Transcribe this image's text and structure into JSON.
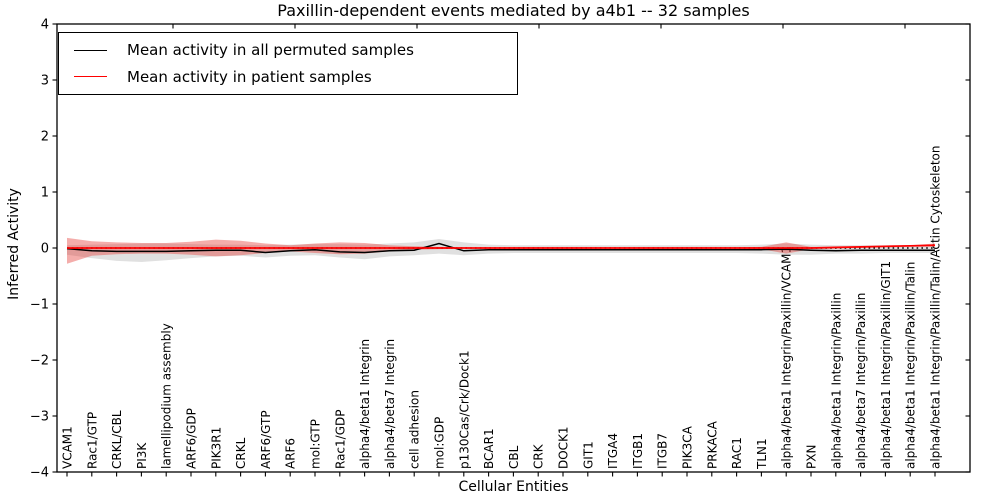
{
  "chart_data": {
    "type": "line",
    "title": "Paxillin-dependent events mediated by a4b1 -- 32 samples",
    "xlabel": "Cellular Entities",
    "ylabel": "Inferred Activity",
    "ylim": [
      -4,
      4
    ],
    "yticks": [
      -4,
      -3,
      -2,
      -1,
      0,
      1,
      2,
      3,
      4
    ],
    "grid": false,
    "legend_position": "upper left",
    "zero_reference_line": {
      "style": "dotted",
      "color": "#000000",
      "y": 0
    },
    "categories": [
      "VCAM1",
      "Rac1/GTP",
      "CRKL/CBL",
      "PI3K",
      "lamellipodium assembly",
      "ARF6/GDP",
      "PIK3R1",
      "CRKL",
      "ARF6/GTP",
      "ARF6",
      "mol:GTP",
      "Rac1/GDP",
      "alpha4/beta1 Integrin",
      "alpha4/beta7 Integrin",
      "cell adhesion",
      "mol:GDP",
      "p130Cas/Crk/Dock1",
      "BCAR1",
      "CBL",
      "CRK",
      "DOCK1",
      "GIT1",
      "ITGA4",
      "ITGB1",
      "ITGB7",
      "PIK3CA",
      "PRKACA",
      "RAC1",
      "TLN1",
      "alpha4/beta1 Integrin/Paxillin/VCAM1",
      "PXN",
      "alpha4/beta1 Integrin/Paxillin",
      "alpha4/beta7 Integrin/Paxillin",
      "alpha4/beta1 Integrin/Paxillin/GIT1",
      "alpha4/beta1 Integrin/Paxillin/Talin",
      "alpha4/beta1 Integrin/Paxillin/Talin/Actin Cytoskeleton"
    ],
    "series": [
      {
        "name": "Mean activity in all permuted samples",
        "color": "#000000",
        "band_color": "rgba(0,0,0,0.12)",
        "values": [
          -0.01,
          -0.05,
          -0.06,
          -0.06,
          -0.06,
          -0.05,
          -0.04,
          -0.04,
          -0.08,
          -0.05,
          -0.03,
          -0.07,
          -0.08,
          -0.05,
          -0.04,
          0.08,
          -0.05,
          -0.03,
          -0.03,
          -0.03,
          -0.03,
          -0.03,
          -0.03,
          -0.03,
          -0.03,
          -0.03,
          -0.03,
          -0.03,
          -0.03,
          -0.02,
          -0.04,
          -0.05,
          -0.04,
          -0.04,
          -0.04,
          -0.04
        ],
        "band_upper": [
          0.05,
          0.06,
          0.07,
          0.08,
          0.08,
          0.07,
          0.06,
          0.06,
          0.05,
          0.06,
          0.07,
          0.07,
          0.06,
          0.08,
          0.1,
          0.16,
          0.1,
          0.06,
          0.05,
          0.05,
          0.05,
          0.05,
          0.05,
          0.05,
          0.05,
          0.05,
          0.05,
          0.05,
          0.06,
          0.08,
          0.06,
          0.05,
          0.05,
          0.05,
          0.05,
          0.06
        ],
        "band_lower": [
          -0.12,
          -0.18,
          -0.23,
          -0.25,
          -0.22,
          -0.18,
          -0.15,
          -0.14,
          -0.17,
          -0.14,
          -0.13,
          -0.17,
          -0.2,
          -0.15,
          -0.13,
          -0.1,
          -0.13,
          -0.1,
          -0.09,
          -0.09,
          -0.09,
          -0.09,
          -0.09,
          -0.09,
          -0.09,
          -0.09,
          -0.09,
          -0.09,
          -0.1,
          -0.12,
          -0.12,
          -0.1,
          -0.1,
          -0.09,
          -0.09,
          -0.09
        ]
      },
      {
        "name": "Mean activity in patient samples",
        "color": "#ff0000",
        "band_color": "rgba(228,60,56,0.42)",
        "values": [
          0,
          0,
          0,
          0,
          0,
          0,
          0,
          0,
          0,
          0,
          0,
          0,
          0,
          0,
          0,
          0,
          0,
          0,
          0,
          0,
          0,
          0,
          0,
          0,
          0,
          0,
          0,
          0,
          0,
          0,
          0,
          0.01,
          0.02,
          0.03,
          0.04,
          0.05
        ],
        "band_upper": [
          0.18,
          0.12,
          0.1,
          0.09,
          0.09,
          0.11,
          0.15,
          0.13,
          0.08,
          0.05,
          0.08,
          0.1,
          0.09,
          0.05,
          0.03,
          0.02,
          0.01,
          0.01,
          0.01,
          0.01,
          0.01,
          0.01,
          0.01,
          0.01,
          0.01,
          0.01,
          0.01,
          0.01,
          0.02,
          0.1,
          0.02,
          0.02,
          0.03,
          0.04,
          0.05,
          0.08
        ],
        "band_lower": [
          -0.28,
          -0.14,
          -0.11,
          -0.1,
          -0.1,
          -0.12,
          -0.15,
          -0.13,
          -0.09,
          -0.06,
          -0.09,
          -0.11,
          -0.1,
          -0.06,
          -0.03,
          -0.02,
          -0.01,
          -0.01,
          -0.01,
          -0.01,
          -0.01,
          -0.01,
          -0.01,
          -0.01,
          -0.01,
          -0.01,
          -0.01,
          -0.01,
          -0.02,
          -0.1,
          -0.02,
          -0.01,
          0.0,
          0.01,
          0.02,
          0.02
        ]
      }
    ]
  }
}
